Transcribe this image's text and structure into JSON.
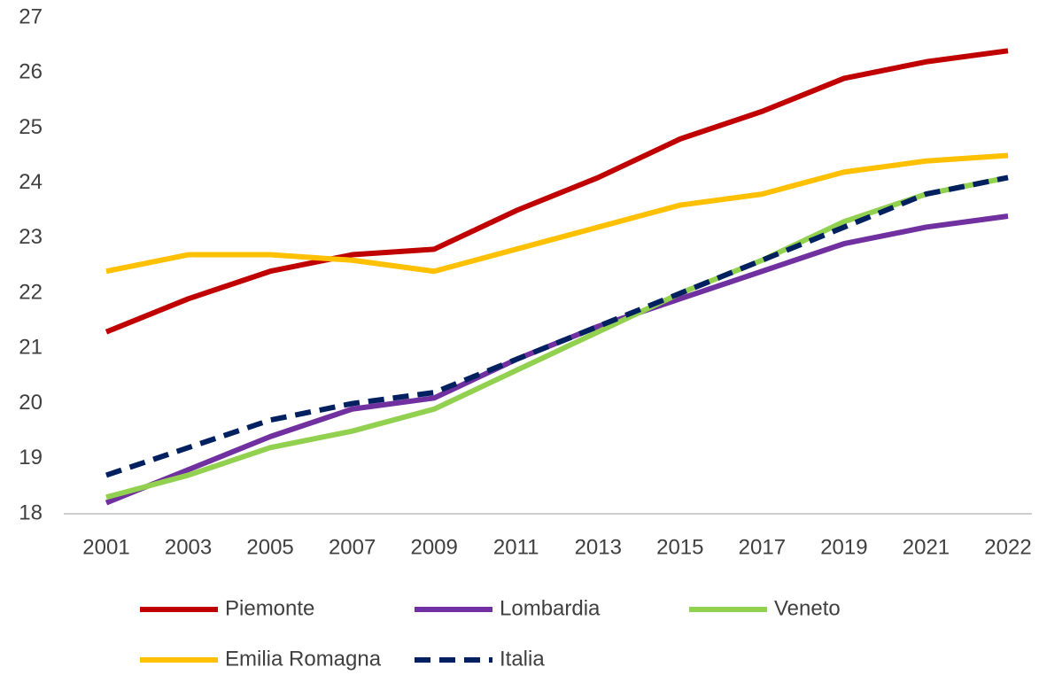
{
  "chart_data": {
    "type": "line",
    "categories": [
      "2001",
      "2003",
      "2005",
      "2007",
      "2009",
      "2011",
      "2013",
      "2015",
      "2017",
      "2019",
      "2021",
      "2022"
    ],
    "series": [
      {
        "name": "Piemonte",
        "color": "#c00000",
        "values": [
          21.3,
          21.9,
          22.4,
          22.7,
          22.8,
          23.5,
          24.1,
          24.8,
          25.3,
          25.9,
          26.2,
          26.4
        ]
      },
      {
        "name": "Lombardia",
        "color": "#7030a0",
        "values": [
          18.2,
          18.8,
          19.4,
          19.9,
          20.1,
          20.8,
          21.4,
          21.9,
          22.4,
          22.9,
          23.2,
          23.4
        ]
      },
      {
        "name": "Veneto",
        "color": "#92d050",
        "values": [
          18.3,
          18.7,
          19.2,
          19.5,
          19.9,
          20.6,
          21.3,
          22.0,
          22.6,
          23.3,
          23.8,
          24.1
        ]
      },
      {
        "name": "Emilia Romagna",
        "color": "#ffc000",
        "values": [
          22.4,
          22.7,
          22.7,
          22.6,
          22.4,
          22.8,
          23.2,
          23.6,
          23.8,
          24.2,
          24.4,
          24.5
        ]
      },
      {
        "name": "Italia",
        "color": "#002060",
        "dashed": true,
        "values": [
          18.7,
          19.2,
          19.7,
          20.0,
          20.2,
          20.8,
          21.4,
          22.0,
          22.6,
          23.2,
          23.8,
          24.1
        ]
      }
    ],
    "ylim": [
      18,
      27
    ],
    "yticks": [
      18,
      19,
      20,
      21,
      22,
      23,
      24,
      25,
      26,
      27
    ],
    "grid": false,
    "legend": "bottom"
  }
}
